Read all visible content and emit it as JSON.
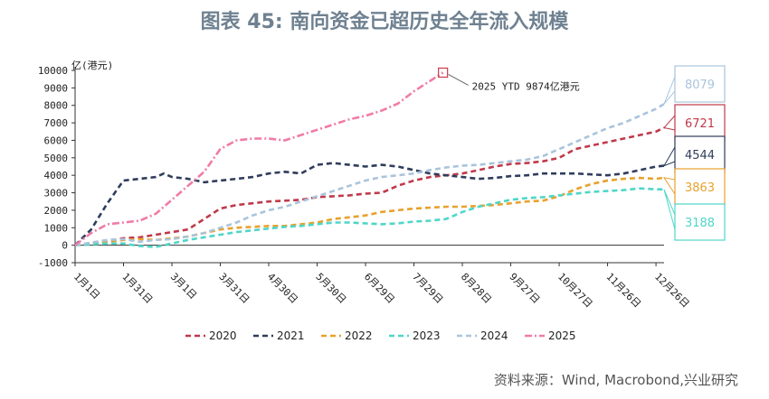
{
  "title": "图表 45: 南向资金已超历史全年流入规模",
  "source": "资料来源：Wind, Macrobond,兴业研究",
  "chart_data": {
    "type": "line",
    "ylabel": "亿(港元)",
    "ylim": [
      -1000,
      10000
    ],
    "yticks": [
      -1000,
      0,
      1000,
      2000,
      3000,
      4000,
      5000,
      6000,
      7000,
      8000,
      9000,
      10000
    ],
    "x_ticks": [
      "1月1日",
      "1月31日",
      "3月1日",
      "3月31日",
      "4月30日",
      "5月30日",
      "6月29日",
      "7月29日",
      "8月28日",
      "9月27日",
      "10月27日",
      "11月26日",
      "12月26日"
    ],
    "x_range": [
      0,
      365
    ],
    "annotation": "2025 YTD 9874亿港元",
    "series": [
      {
        "name": "2020",
        "color": "#c0394b",
        "dash": "6,4",
        "x": [
          0,
          10,
          20,
          30,
          40,
          50,
          60,
          70,
          80,
          90,
          100,
          110,
          120,
          130,
          140,
          150,
          160,
          170,
          180,
          190,
          200,
          210,
          220,
          230,
          240,
          250,
          260,
          270,
          280,
          290,
          300,
          310,
          320,
          330,
          340,
          350,
          360,
          365
        ],
        "y": [
          0,
          100,
          250,
          400,
          450,
          600,
          750,
          900,
          1500,
          2100,
          2300,
          2400,
          2500,
          2550,
          2600,
          2750,
          2800,
          2850,
          2950,
          3000,
          3400,
          3700,
          3900,
          4000,
          4100,
          4300,
          4500,
          4650,
          4700,
          4800,
          5000,
          5500,
          5700,
          5900,
          6100,
          6300,
          6500,
          6721
        ]
      },
      {
        "name": "2021",
        "color": "#2f3d5c",
        "dash": "6,4",
        "x": [
          0,
          10,
          20,
          30,
          40,
          50,
          55,
          60,
          70,
          80,
          90,
          100,
          110,
          120,
          130,
          140,
          150,
          160,
          170,
          180,
          190,
          200,
          210,
          220,
          230,
          240,
          250,
          260,
          270,
          280,
          290,
          300,
          310,
          320,
          330,
          340,
          350,
          360,
          365
        ],
        "y": [
          0,
          900,
          2400,
          3700,
          3800,
          3900,
          4100,
          3900,
          3800,
          3600,
          3700,
          3800,
          3900,
          4100,
          4200,
          4100,
          4600,
          4700,
          4600,
          4500,
          4600,
          4500,
          4300,
          4100,
          4000,
          3900,
          3800,
          3850,
          3950,
          4000,
          4100,
          4100,
          4100,
          4050,
          4000,
          4100,
          4300,
          4500,
          4544
        ]
      },
      {
        "name": "2022",
        "color": "#e8a12d",
        "dash": "6,4",
        "x": [
          0,
          10,
          20,
          30,
          40,
          50,
          60,
          70,
          80,
          90,
          100,
          110,
          120,
          130,
          140,
          150,
          160,
          170,
          180,
          190,
          200,
          210,
          220,
          230,
          240,
          250,
          260,
          270,
          280,
          290,
          300,
          310,
          320,
          330,
          340,
          350,
          360,
          365
        ],
        "y": [
          0,
          100,
          200,
          300,
          350,
          300,
          400,
          500,
          700,
          900,
          1000,
          1050,
          1100,
          1100,
          1200,
          1300,
          1500,
          1600,
          1700,
          1900,
          2000,
          2100,
          2150,
          2200,
          2200,
          2250,
          2300,
          2400,
          2500,
          2550,
          2800,
          3200,
          3500,
          3700,
          3800,
          3850,
          3800,
          3863
        ]
      },
      {
        "name": "2023",
        "color": "#4fd6c8",
        "dash": "6,4",
        "x": [
          0,
          10,
          20,
          30,
          40,
          50,
          60,
          70,
          80,
          90,
          100,
          110,
          120,
          130,
          140,
          150,
          160,
          170,
          180,
          190,
          200,
          210,
          220,
          230,
          240,
          250,
          260,
          270,
          280,
          290,
          300,
          310,
          320,
          330,
          340,
          350,
          360,
          365
        ],
        "y": [
          0,
          50,
          100,
          100,
          -50,
          -100,
          100,
          300,
          450,
          600,
          750,
          850,
          950,
          1050,
          1100,
          1200,
          1300,
          1300,
          1250,
          1200,
          1250,
          1350,
          1400,
          1500,
          1900,
          2200,
          2400,
          2600,
          2700,
          2750,
          2850,
          2950,
          3050,
          3100,
          3150,
          3250,
          3200,
          3188
        ]
      },
      {
        "name": "2024",
        "color": "#a9c4dc",
        "dash": "6,4",
        "x": [
          0,
          10,
          20,
          30,
          40,
          50,
          60,
          70,
          80,
          90,
          100,
          110,
          120,
          130,
          140,
          150,
          160,
          170,
          180,
          190,
          200,
          210,
          220,
          230,
          240,
          250,
          260,
          270,
          280,
          290,
          300,
          310,
          320,
          330,
          340,
          350,
          360,
          365
        ],
        "y": [
          0,
          150,
          300,
          350,
          200,
          300,
          350,
          500,
          700,
          1000,
          1300,
          1700,
          2000,
          2200,
          2500,
          2800,
          3100,
          3400,
          3700,
          3900,
          4000,
          4100,
          4300,
          4450,
          4550,
          4600,
          4700,
          4800,
          4900,
          5100,
          5500,
          5900,
          6300,
          6700,
          7000,
          7400,
          7800,
          8079
        ]
      },
      {
        "name": "2025",
        "color": "#f07ca8",
        "dash": "8,3,2,3",
        "x": [
          0,
          10,
          20,
          30,
          40,
          50,
          60,
          70,
          80,
          90,
          100,
          110,
          120,
          130,
          140,
          150,
          160,
          170,
          180,
          190,
          200,
          210,
          220,
          228
        ],
        "y": [
          0,
          700,
          1200,
          1300,
          1400,
          1800,
          2600,
          3400,
          4200,
          5500,
          6000,
          6100,
          6100,
          6000,
          6300,
          6600,
          6900,
          7200,
          7400,
          7700,
          8100,
          8800,
          9400,
          9874
        ]
      }
    ],
    "end_labels": [
      {
        "series": "2024",
        "value": "8079"
      },
      {
        "series": "2020",
        "value": "6721"
      },
      {
        "series": "2021",
        "value": "4544"
      },
      {
        "series": "2022",
        "value": "3863"
      },
      {
        "series": "2023",
        "value": "3188"
      }
    ]
  }
}
